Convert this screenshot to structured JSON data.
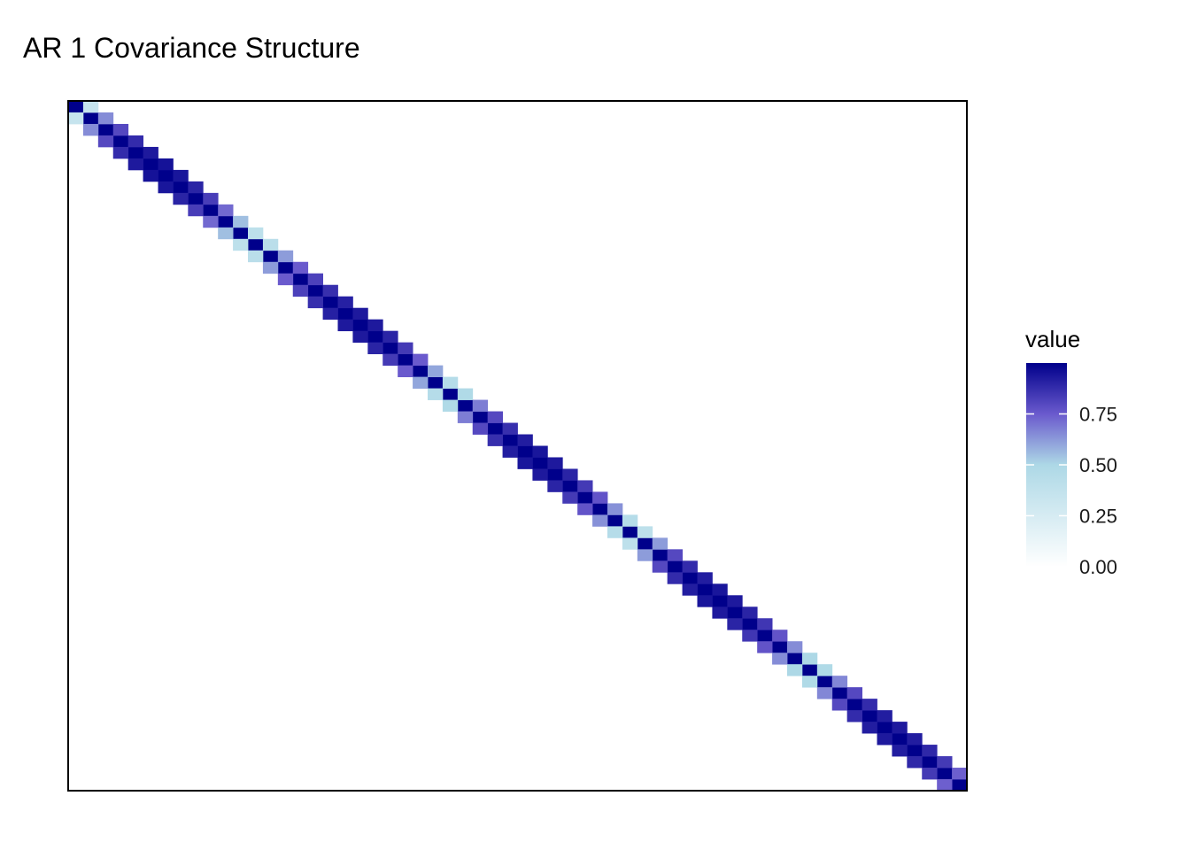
{
  "chart_data": {
    "type": "heatmap",
    "title": "AR 1 Covariance Structure",
    "xlabel": "",
    "ylabel": "",
    "n": 60,
    "diagonal_value": 1.0,
    "offdiagonal_values": [
      0.35,
      0.65,
      0.8,
      0.88,
      0.93,
      0.95,
      0.94,
      0.9,
      0.83,
      0.72,
      0.55,
      0.4,
      0.42,
      0.62,
      0.75,
      0.82,
      0.87,
      0.91,
      0.93,
      0.93,
      0.9,
      0.84,
      0.75,
      0.6,
      0.45,
      0.48,
      0.68,
      0.8,
      0.87,
      0.92,
      0.94,
      0.93,
      0.9,
      0.84,
      0.77,
      0.64,
      0.45,
      0.4,
      0.62,
      0.8,
      0.88,
      0.92,
      0.94,
      0.93,
      0.9,
      0.85,
      0.77,
      0.65,
      0.5,
      0.48,
      0.66,
      0.8,
      0.88,
      0.92,
      0.93,
      0.92,
      0.89,
      0.84,
      0.74
    ],
    "legend": {
      "title": "value",
      "position": "right",
      "ticks": [
        0.75,
        0.5,
        0.25,
        0.0
      ],
      "tick_labels": [
        "0.75",
        "0.50",
        "0.25",
        "0.00"
      ],
      "range": [
        0,
        1
      ],
      "colors": [
        "#ffffff",
        "#add8e6",
        "#6a5acd",
        "#00008b"
      ]
    },
    "grid": false
  }
}
